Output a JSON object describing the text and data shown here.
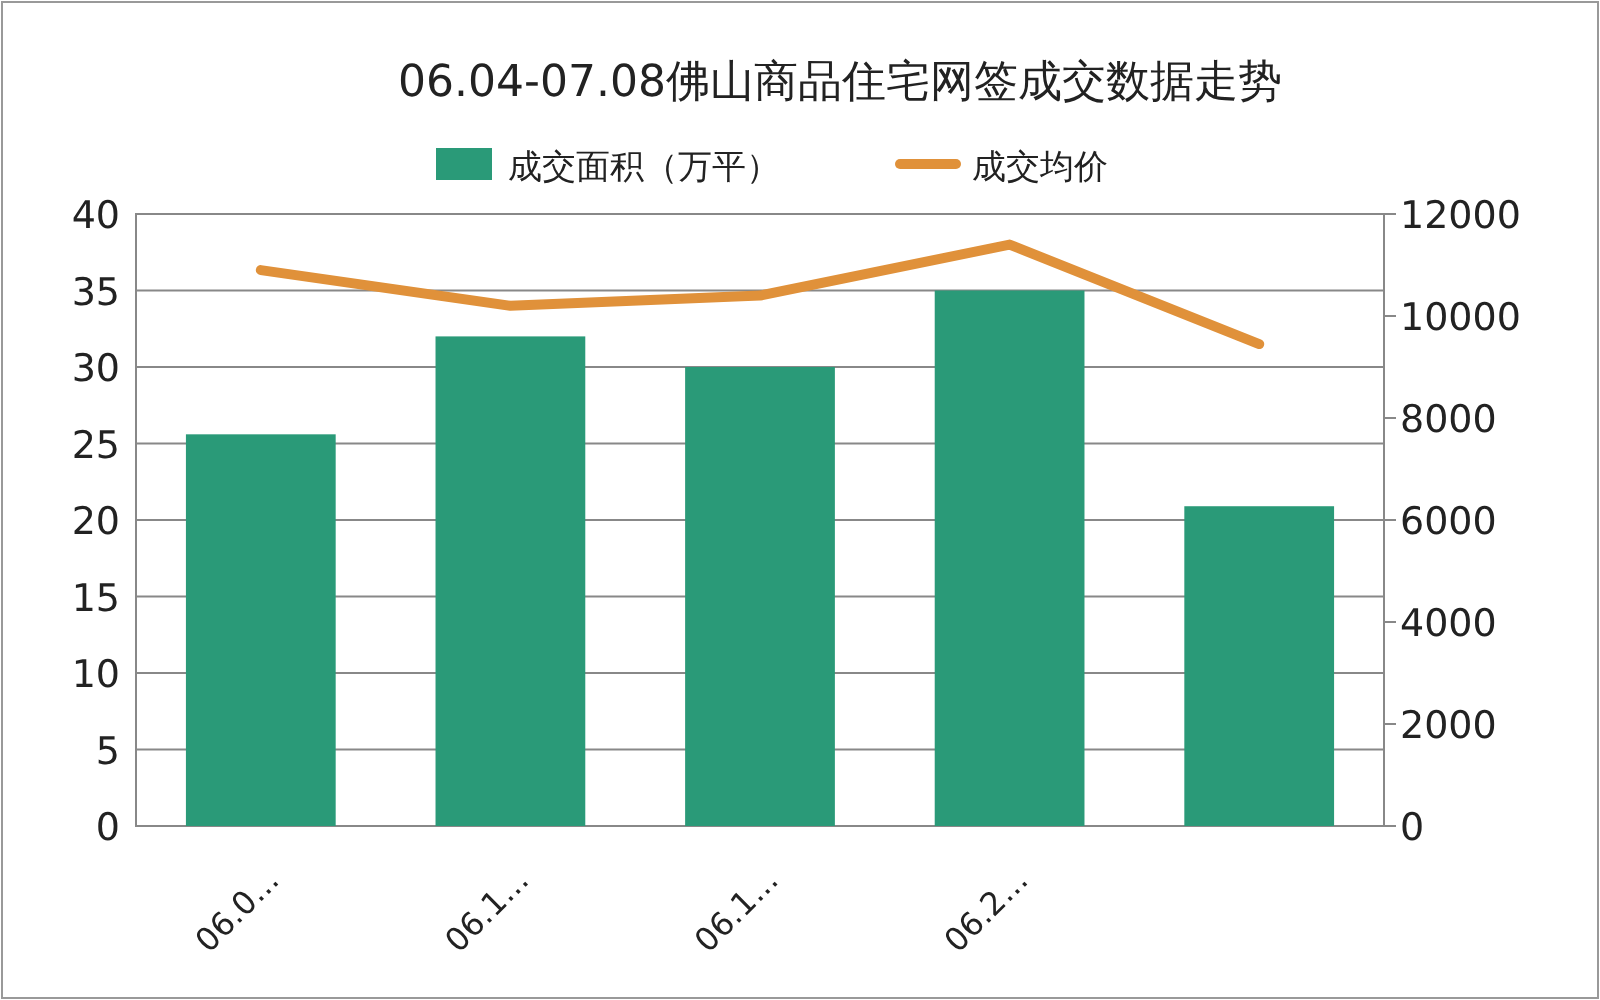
{
  "chart_data": {
    "type": "bar",
    "title": "06.04-07.08佛山商品住宅网签成交数据走势",
    "categories": [
      "06.0...",
      "06.1...",
      "06.1...",
      "06.2...",
      null
    ],
    "series": [
      {
        "name": "成交面积（万平）",
        "color": "#2a9a78",
        "values": [
          25.6,
          32,
          30,
          35,
          20.9
        ]
      },
      {
        "name": "成交均价",
        "type": "line",
        "axis": "y2",
        "color": "#e0913a",
        "values": [
          10900,
          10200,
          10400,
          11400,
          9450
        ]
      }
    ],
    "ylim": [
      0,
      40
    ],
    "yticks": [
      0,
      5,
      10,
      15,
      20,
      25,
      30,
      35,
      40
    ],
    "y2lim": [
      0,
      12000
    ],
    "y2ticks": [
      0,
      2000,
      4000,
      6000,
      8000,
      10000,
      12000
    ],
    "grid": "y",
    "legend": "top",
    "marker": "none",
    "line_style": "solid"
  }
}
